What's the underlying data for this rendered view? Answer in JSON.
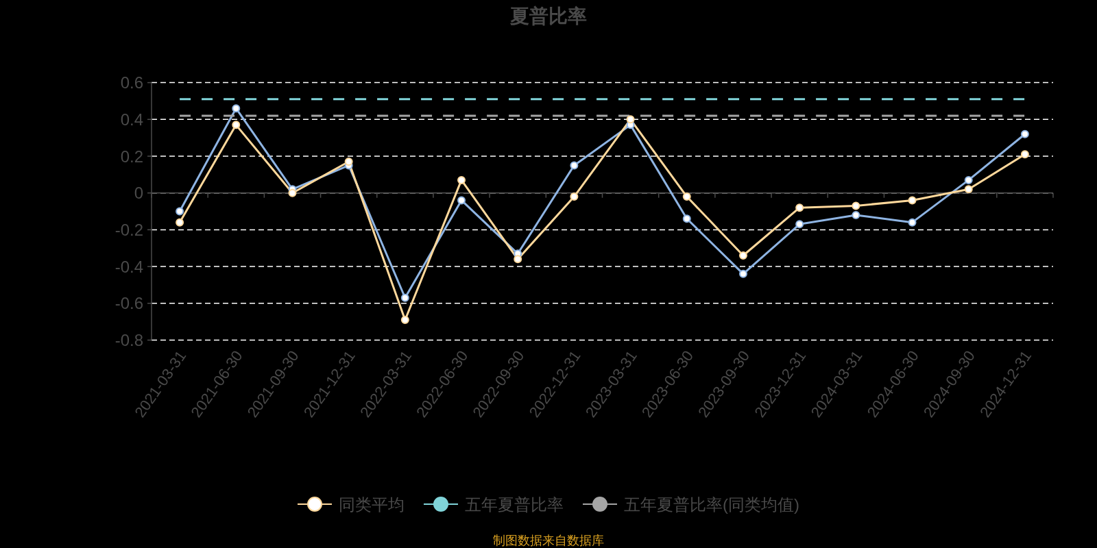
{
  "chart_data": {
    "type": "line",
    "title": "夏普比率",
    "categories": [
      "2021-03-31",
      "2021-06-30",
      "2021-09-30",
      "2021-12-31",
      "2022-03-31",
      "2022-06-30",
      "2022-09-30",
      "2022-12-31",
      "2023-03-31",
      "2023-06-30",
      "2023-09-30",
      "2023-12-31",
      "2024-03-31",
      "2024-06-30",
      "2024-09-30",
      "2024-12-31"
    ],
    "series": [
      {
        "color": "#8eb4e3",
        "values": [
          -0.1,
          0.46,
          0.02,
          0.15,
          -0.57,
          -0.04,
          -0.33,
          0.15,
          0.37,
          -0.14,
          -0.44,
          -0.17,
          -0.12,
          -0.16,
          0.07,
          0.32
        ]
      },
      {
        "name": "同类平均",
        "color": "#ffd89b",
        "values": [
          -0.16,
          0.37,
          0.0,
          0.17,
          -0.69,
          0.07,
          -0.36,
          -0.02,
          0.4,
          -0.02,
          -0.34,
          -0.08,
          -0.07,
          -0.04,
          0.02,
          0.21
        ]
      },
      {
        "name": "五年夏普比率",
        "color": "#80d4d9",
        "line_style": "dashed",
        "marker": "none",
        "values": [
          0.51,
          0.51,
          0.51,
          0.51,
          0.51,
          0.51,
          0.51,
          0.51,
          0.51,
          0.51,
          0.51,
          0.51,
          0.51,
          0.51,
          0.51,
          0.51
        ]
      },
      {
        "name": "五年夏普比率(同类均值)",
        "color": "#a5a5a5",
        "line_style": "dashed",
        "marker": "none",
        "values": [
          0.42,
          0.42,
          0.42,
          0.42,
          0.42,
          0.42,
          0.42,
          0.42,
          0.42,
          0.42,
          0.42,
          0.42,
          0.42,
          0.42,
          0.42,
          0.42
        ]
      }
    ],
    "ylim": [
      -0.8,
      0.6
    ],
    "yticks": [
      -0.8,
      -0.6,
      -0.4,
      -0.2,
      0,
      0.2,
      0.4,
      0.6
    ],
    "grid": "y",
    "legend": "bottom",
    "marker": "circle",
    "line_style": "solid",
    "annotations": [
      "制图数据来自数据库"
    ]
  }
}
